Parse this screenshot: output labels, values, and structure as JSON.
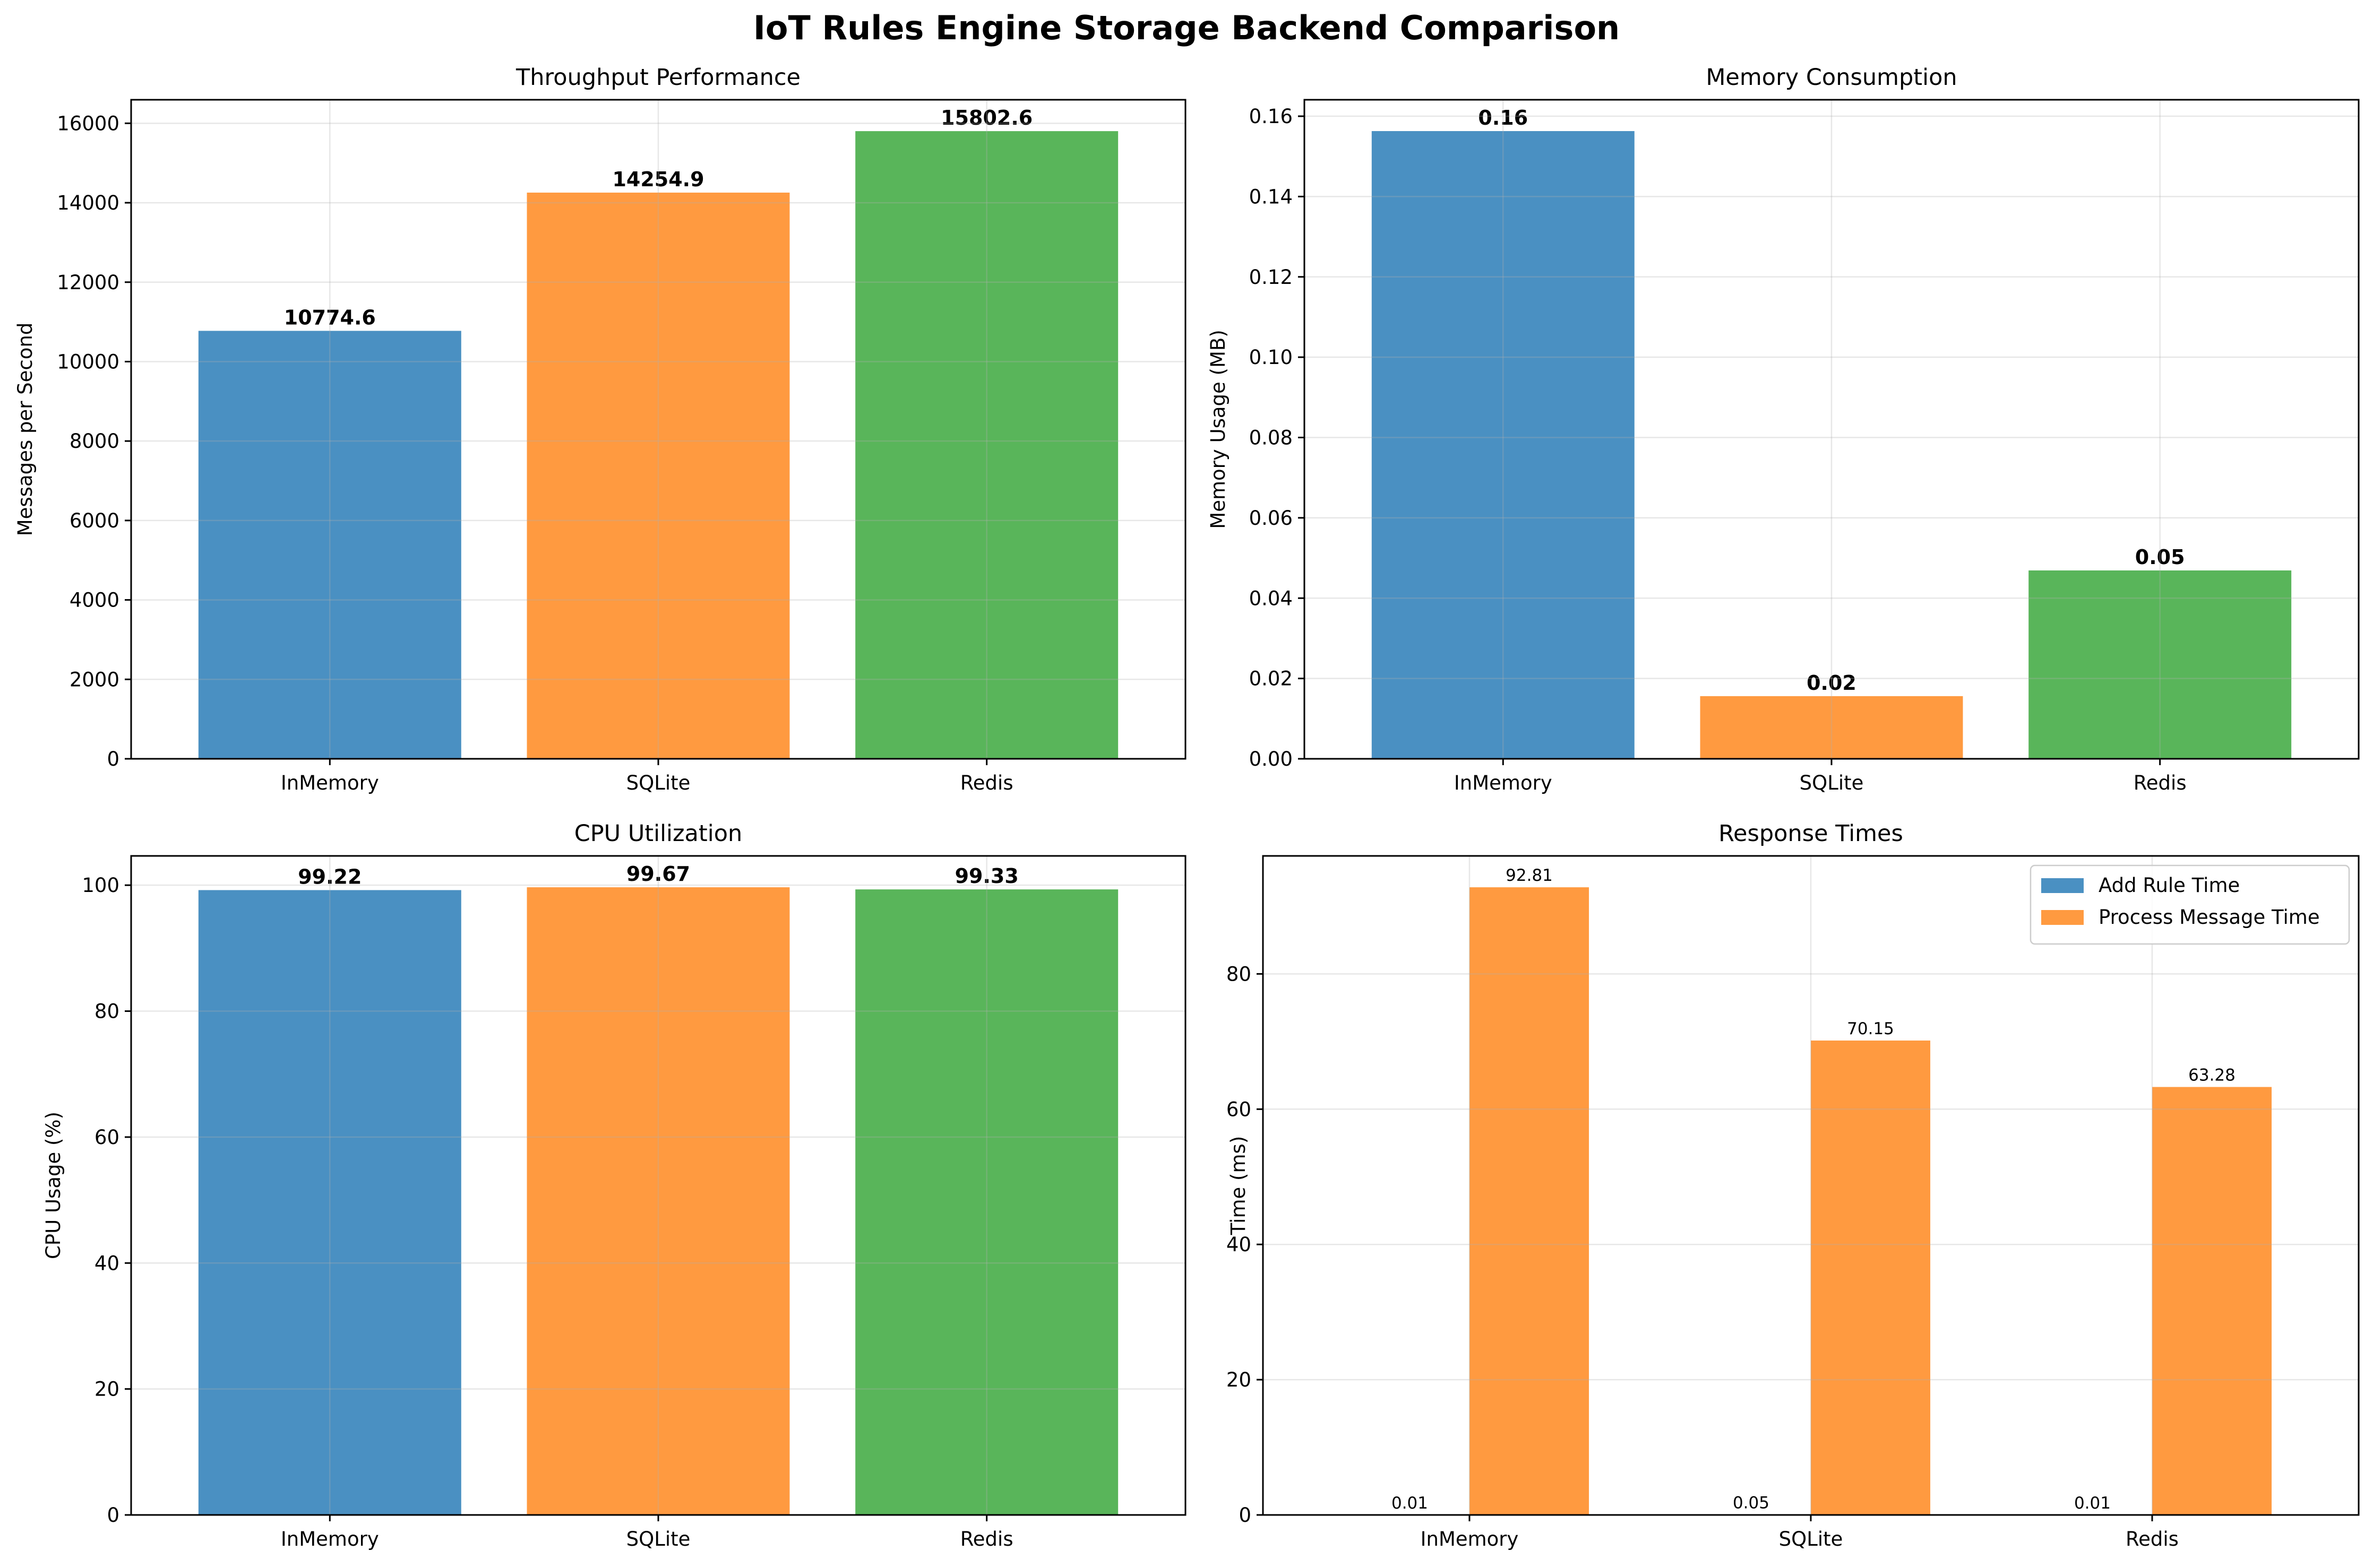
{
  "figure": {
    "title": "IoT Rules Engine Storage Backend Comparison"
  },
  "chart_data": [
    {
      "id": "throughput",
      "type": "bar",
      "title": "Throughput Performance",
      "xlabel": "",
      "ylabel": "Messages per Second",
      "categories": [
        "InMemory",
        "SQLite",
        "Redis"
      ],
      "values": [
        10774.6,
        14254.9,
        15802.6
      ],
      "value_labels": [
        "10774.6",
        "14254.9",
        "15802.6"
      ],
      "ylim": [
        0,
        16592.7
      ],
      "yticks": [
        0,
        2000,
        4000,
        6000,
        8000,
        10000,
        12000,
        14000,
        16000
      ],
      "ytick_labels": [
        "0",
        "2000",
        "4000",
        "6000",
        "8000",
        "10000",
        "12000",
        "14000",
        "16000"
      ],
      "colors": [
        "#4a90c2",
        "#ff9a40",
        "#59b55a"
      ],
      "grid": true
    },
    {
      "id": "memory",
      "type": "bar",
      "title": "Memory Consumption",
      "xlabel": "",
      "ylabel": "Memory Usage (MB)",
      "categories": [
        "InMemory",
        "SQLite",
        "Redis"
      ],
      "values": [
        0.1563,
        0.0156,
        0.0469
      ],
      "value_labels": [
        "0.16",
        "0.02",
        "0.05"
      ],
      "ylim": [
        0,
        0.1641
      ],
      "yticks": [
        0,
        0.02,
        0.04,
        0.06,
        0.08,
        0.1,
        0.12,
        0.14,
        0.16
      ],
      "ytick_labels": [
        "0.00",
        "0.02",
        "0.04",
        "0.06",
        "0.08",
        "0.10",
        "0.12",
        "0.14",
        "0.16"
      ],
      "colors": [
        "#4a90c2",
        "#ff9a40",
        "#59b55a"
      ],
      "grid": true
    },
    {
      "id": "cpu",
      "type": "bar",
      "title": "CPU Utilization",
      "xlabel": "",
      "ylabel": "CPU Usage (%)",
      "categories": [
        "InMemory",
        "SQLite",
        "Redis"
      ],
      "values": [
        99.22,
        99.67,
        99.33
      ],
      "value_labels": [
        "99.22",
        "99.67",
        "99.33"
      ],
      "ylim": [
        0,
        104.65
      ],
      "yticks": [
        0,
        20,
        40,
        60,
        80,
        100
      ],
      "ytick_labels": [
        "0",
        "20",
        "40",
        "60",
        "80",
        "100"
      ],
      "colors": [
        "#4a90c2",
        "#ff9a40",
        "#59b55a"
      ],
      "grid": true
    },
    {
      "id": "response",
      "type": "bar",
      "title": "Response Times",
      "xlabel": "",
      "ylabel": "Time (ms)",
      "categories": [
        "InMemory",
        "SQLite",
        "Redis"
      ],
      "series": [
        {
          "name": "Add Rule Time",
          "values": [
            0.01,
            0.05,
            0.01
          ],
          "value_labels": [
            "0.01",
            "0.05",
            "0.01"
          ],
          "color": "#4a90c2"
        },
        {
          "name": "Process Message Time",
          "values": [
            92.81,
            70.15,
            63.28
          ],
          "value_labels": [
            "92.81",
            "70.15",
            "63.28"
          ],
          "color": "#ff9a40"
        }
      ],
      "ylim": [
        0,
        97.45
      ],
      "yticks": [
        0,
        20,
        40,
        60,
        80
      ],
      "ytick_labels": [
        "0",
        "20",
        "40",
        "60",
        "80"
      ],
      "legend": "top-right",
      "grid": true
    }
  ]
}
